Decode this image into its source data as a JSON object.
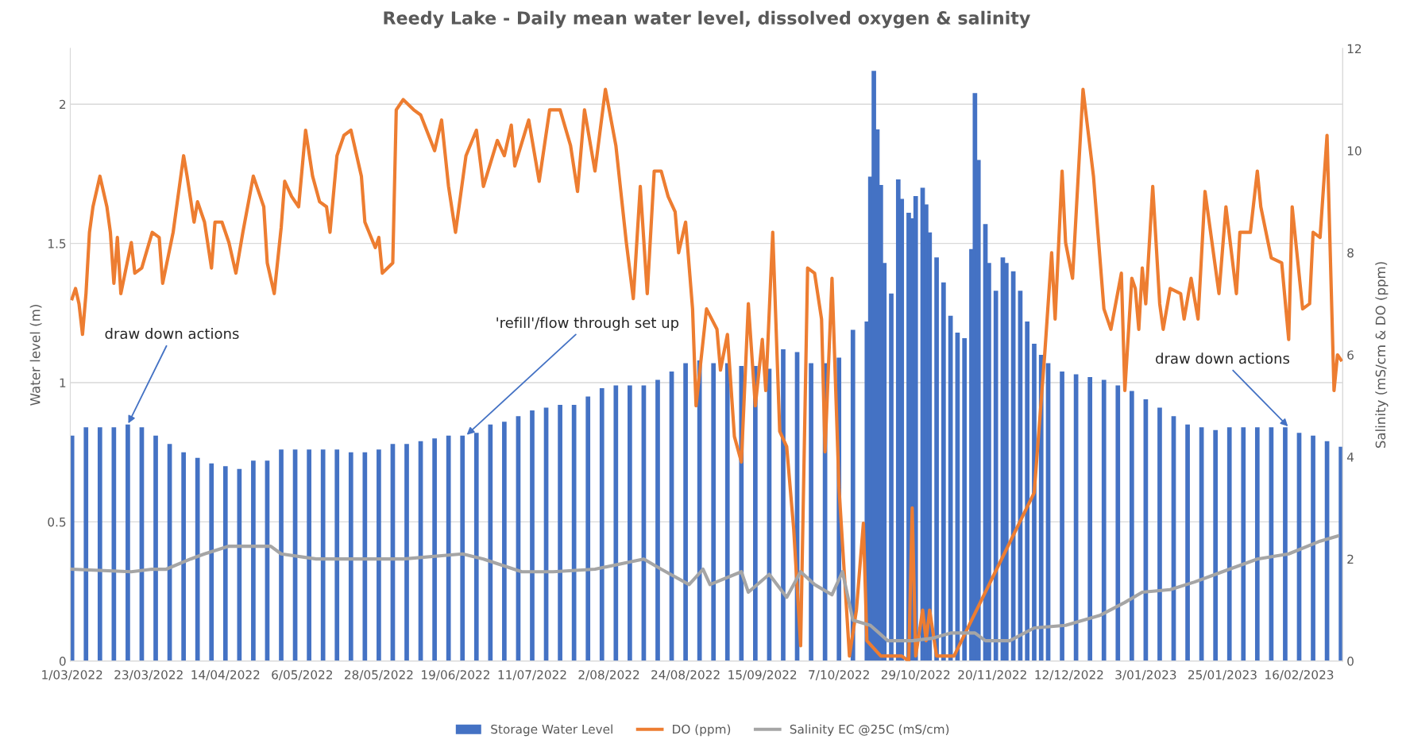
{
  "chart_data": {
    "type": "bar",
    "title": "Reedy Lake - Daily mean water level, dissolved oxygen & salinity",
    "ylabel": "Water level (m)",
    "y2label": "Salinity (mS/cm & DO (ppm)",
    "xlim": [
      "2022-02-28T12:00",
      "2023-02-28T12:00"
    ],
    "xticks": [
      {
        "value": "2022-03-01",
        "label": "1/03/2022"
      },
      {
        "value": "2022-03-23",
        "label": "23/03/2022"
      },
      {
        "value": "2022-04-14",
        "label": "14/04/2022"
      },
      {
        "value": "2022-05-06",
        "label": "6/05/2022"
      },
      {
        "value": "2022-05-28",
        "label": "28/05/2022"
      },
      {
        "value": "2022-06-19",
        "label": "19/06/2022"
      },
      {
        "value": "2022-07-11",
        "label": "11/07/2022"
      },
      {
        "value": "2022-08-02",
        "label": "2/08/2022"
      },
      {
        "value": "2022-08-24",
        "label": "24/08/2022"
      },
      {
        "value": "2022-09-15",
        "label": "15/09/2022"
      },
      {
        "value": "2022-10-07",
        "label": "7/10/2022"
      },
      {
        "value": "2022-10-29",
        "label": "29/10/2022"
      },
      {
        "value": "2022-11-20",
        "label": "20/11/2022"
      },
      {
        "value": "2022-12-12",
        "label": "12/12/2022"
      },
      {
        "value": "2023-01-03",
        "label": "3/01/2023"
      },
      {
        "value": "2023-01-25",
        "label": "25/01/2023"
      },
      {
        "value": "2023-02-16",
        "label": "16/02/2023"
      }
    ],
    "ylim": [
      0,
      2.2
    ],
    "yticks": [
      0,
      0.5,
      1,
      1.5,
      2
    ],
    "y2lim": [
      0,
      12
    ],
    "y2ticks": [
      0,
      2,
      4,
      6,
      8,
      10,
      12
    ],
    "grid": "y",
    "legend": "bottom",
    "annotations": [
      {
        "text": "draw down actions",
        "x": "2022-03-17",
        "y": 0.85
      },
      {
        "text": "'refill'/flow through set up",
        "x": "2022-06-22",
        "y": 0.81
      },
      {
        "text": "draw down actions",
        "x": "2023-02-13",
        "y": 0.84
      }
    ],
    "series": [
      {
        "name": "Storage Water Level",
        "color": "#4472c4",
        "x": [
          "2022-03-01",
          "2022-03-05",
          "2022-03-09",
          "2022-03-13",
          "2022-03-17",
          "2022-03-21",
          "2022-03-25",
          "2022-03-29",
          "2022-04-02",
          "2022-04-06",
          "2022-04-10",
          "2022-04-14",
          "2022-04-18",
          "2022-04-22",
          "2022-04-26",
          "2022-04-30",
          "2022-05-04",
          "2022-05-08",
          "2022-05-12",
          "2022-05-16",
          "2022-05-20",
          "2022-05-24",
          "2022-05-28",
          "2022-06-01",
          "2022-06-05",
          "2022-06-09",
          "2022-06-13",
          "2022-06-17",
          "2022-06-21",
          "2022-06-25",
          "2022-06-29",
          "2022-07-03",
          "2022-07-07",
          "2022-07-11",
          "2022-07-15",
          "2022-07-19",
          "2022-07-23",
          "2022-07-27",
          "2022-07-31",
          "2022-08-04",
          "2022-08-08",
          "2022-08-12",
          "2022-08-16",
          "2022-08-20",
          "2022-08-24",
          "2022-08-28",
          "2022-09-01",
          "2022-09-05",
          "2022-09-09",
          "2022-09-13",
          "2022-09-17",
          "2022-09-21",
          "2022-09-25",
          "2022-09-29",
          "2022-10-03",
          "2022-10-07",
          "2022-10-11",
          "2022-10-15",
          "2022-10-16",
          "2022-10-17",
          "2022-10-18",
          "2022-10-19",
          "2022-10-20",
          "2022-10-22",
          "2022-10-24",
          "2022-10-25",
          "2022-10-27",
          "2022-10-28",
          "2022-10-29",
          "2022-10-31",
          "2022-11-01",
          "2022-11-02",
          "2022-11-04",
          "2022-11-06",
          "2022-11-08",
          "2022-11-10",
          "2022-11-12",
          "2022-11-14",
          "2022-11-15",
          "2022-11-16",
          "2022-11-18",
          "2022-11-19",
          "2022-11-21",
          "2022-11-23",
          "2022-11-24",
          "2022-11-26",
          "2022-11-28",
          "2022-11-30",
          "2022-12-02",
          "2022-12-04",
          "2022-12-06",
          "2022-12-10",
          "2022-12-14",
          "2022-12-18",
          "2022-12-22",
          "2022-12-26",
          "2022-12-30",
          "2023-01-03",
          "2023-01-07",
          "2023-01-11",
          "2023-01-15",
          "2023-01-19",
          "2023-01-23",
          "2023-01-27",
          "2023-01-31",
          "2023-02-04",
          "2023-02-08",
          "2023-02-12",
          "2023-02-16",
          "2023-02-20",
          "2023-02-24",
          "2023-02-28"
        ],
        "values": [
          0.81,
          0.84,
          0.84,
          0.84,
          0.85,
          0.84,
          0.81,
          0.78,
          0.75,
          0.73,
          0.71,
          0.7,
          0.69,
          0.72,
          0.72,
          0.76,
          0.76,
          0.76,
          0.76,
          0.76,
          0.75,
          0.75,
          0.76,
          0.78,
          0.78,
          0.79,
          0.8,
          0.81,
          0.81,
          0.82,
          0.85,
          0.86,
          0.88,
          0.9,
          0.91,
          0.92,
          0.92,
          0.95,
          0.98,
          0.99,
          0.99,
          0.99,
          1.01,
          1.04,
          1.07,
          1.08,
          1.07,
          1.07,
          1.06,
          1.06,
          1.05,
          1.12,
          1.11,
          1.07,
          1.07,
          1.09,
          1.19,
          1.22,
          1.74,
          2.12,
          1.91,
          1.71,
          1.43,
          1.32,
          1.73,
          1.66,
          1.61,
          1.59,
          1.67,
          1.7,
          1.64,
          1.54,
          1.45,
          1.36,
          1.24,
          1.18,
          1.16,
          1.48,
          2.04,
          1.8,
          1.57,
          1.43,
          1.33,
          1.45,
          1.43,
          1.4,
          1.33,
          1.22,
          1.14,
          1.1,
          1.07,
          1.04,
          1.03,
          1.02,
          1.01,
          0.99,
          0.97,
          0.94,
          0.91,
          0.88,
          0.85,
          0.84,
          0.83,
          0.84,
          0.84,
          0.84,
          0.84,
          0.84,
          0.82,
          0.81,
          0.79,
          0.77
        ]
      },
      {
        "name": "DO (ppm)",
        "type": "line",
        "axis": "y2",
        "color": "#ed7d31",
        "x": [
          "2022-03-01",
          "2022-03-02",
          "2022-03-03",
          "2022-03-04",
          "2022-03-05",
          "2022-03-06",
          "2022-03-07",
          "2022-03-09",
          "2022-03-11",
          "2022-03-12",
          "2022-03-13",
          "2022-03-14",
          "2022-03-15",
          "2022-03-18",
          "2022-03-19",
          "2022-03-21",
          "2022-03-24",
          "2022-03-26",
          "2022-03-27",
          "2022-03-30",
          "2022-04-02",
          "2022-04-03",
          "2022-04-05",
          "2022-04-06",
          "2022-04-08",
          "2022-04-10",
          "2022-04-11",
          "2022-04-13",
          "2022-04-15",
          "2022-04-17",
          "2022-04-19",
          "2022-04-22",
          "2022-04-25",
          "2022-04-26",
          "2022-04-28",
          "2022-04-30",
          "2022-05-01",
          "2022-05-03",
          "2022-05-05",
          "2022-05-07",
          "2022-05-09",
          "2022-05-11",
          "2022-05-13",
          "2022-05-14",
          "2022-05-16",
          "2022-05-18",
          "2022-05-20",
          "2022-05-23",
          "2022-05-24",
          "2022-05-27",
          "2022-05-28",
          "2022-05-29",
          "2022-06-01",
          "2022-06-02",
          "2022-06-04",
          "2022-06-07",
          "2022-06-09",
          "2022-06-13",
          "2022-06-15",
          "2022-06-17",
          "2022-06-19",
          "2022-06-22",
          "2022-06-25",
          "2022-06-27",
          "2022-07-01",
          "2022-07-03",
          "2022-07-05",
          "2022-07-06",
          "2022-07-10",
          "2022-07-13",
          "2022-07-16",
          "2022-07-19",
          "2022-07-22",
          "2022-07-24",
          "2022-07-26",
          "2022-07-29",
          "2022-08-01",
          "2022-08-04",
          "2022-08-07",
          "2022-08-09",
          "2022-08-11",
          "2022-08-13",
          "2022-08-15",
          "2022-08-17",
          "2022-08-19",
          "2022-08-21",
          "2022-08-22",
          "2022-08-24",
          "2022-08-26",
          "2022-08-27",
          "2022-08-30",
          "2022-09-02",
          "2022-09-03",
          "2022-09-05",
          "2022-09-07",
          "2022-09-09",
          "2022-09-11",
          "2022-09-13",
          "2022-09-15",
          "2022-09-16",
          "2022-09-18",
          "2022-09-20",
          "2022-09-22",
          "2022-09-24",
          "2022-09-26",
          "2022-09-28",
          "2022-09-30",
          "2022-10-02",
          "2022-10-03",
          "2022-10-05",
          "2022-10-07",
          "2022-10-10",
          "2022-10-12",
          "2022-10-14",
          "2022-10-15",
          "2022-10-19",
          "2022-10-25",
          "2022-10-27",
          "2022-10-28",
          "2022-10-29",
          "2022-10-31",
          "2022-11-01",
          "2022-11-02",
          "2022-11-04",
          "2022-11-09",
          "2022-12-02",
          "2022-12-05",
          "2022-12-07",
          "2022-12-08",
          "2022-12-10",
          "2022-12-11",
          "2022-12-13",
          "2022-12-16",
          "2022-12-19",
          "2022-12-22",
          "2022-12-24",
          "2022-12-27",
          "2022-12-28",
          "2022-12-30",
          "2022-12-31",
          "2023-01-01",
          "2023-01-02",
          "2023-01-03",
          "2023-01-05",
          "2023-01-07",
          "2023-01-08",
          "2023-01-10",
          "2023-01-13",
          "2023-01-14",
          "2023-01-16",
          "2023-01-18",
          "2023-01-20",
          "2023-01-24",
          "2023-01-26",
          "2023-01-29",
          "2023-01-30",
          "2023-02-02",
          "2023-02-04",
          "2023-02-05",
          "2023-02-08",
          "2023-02-11",
          "2023-02-13",
          "2023-02-14",
          "2023-02-17",
          "2023-02-19",
          "2023-02-20",
          "2023-02-22",
          "2023-02-24",
          "2023-02-26",
          "2023-02-27",
          "2023-02-28"
        ],
        "values": [
          7.1,
          7.3,
          7.0,
          6.4,
          7.2,
          8.4,
          8.9,
          9.5,
          8.9,
          8.4,
          7.4,
          8.3,
          7.2,
          8.2,
          7.6,
          7.7,
          8.4,
          8.3,
          7.4,
          8.4,
          9.9,
          9.5,
          8.6,
          9.0,
          8.6,
          7.7,
          8.6,
          8.6,
          8.2,
          7.6,
          8.4,
          9.5,
          8.9,
          7.8,
          7.2,
          8.5,
          9.4,
          9.1,
          8.9,
          10.4,
          9.5,
          9.0,
          8.9,
          8.4,
          9.9,
          10.3,
          10.4,
          9.5,
          8.6,
          8.1,
          8.3,
          7.6,
          7.8,
          10.8,
          11.0,
          10.8,
          10.7,
          10.0,
          10.6,
          9.3,
          8.4,
          9.9,
          10.4,
          9.3,
          10.2,
          9.9,
          10.5,
          9.7,
          10.6,
          9.4,
          10.8,
          10.8,
          10.1,
          9.2,
          10.8,
          9.6,
          11.2,
          10.1,
          8.2,
          7.1,
          9.3,
          7.2,
          9.6,
          9.6,
          9.1,
          8.8,
          8.0,
          8.6,
          6.9,
          5.0,
          6.9,
          6.5,
          5.7,
          6.4,
          4.4,
          3.9,
          7.0,
          5.0,
          6.3,
          5.3,
          8.4,
          4.5,
          4.2,
          2.6,
          0.3,
          7.7,
          7.6,
          6.7,
          4.1,
          7.5,
          3.4,
          0.1,
          1.0,
          2.7,
          0.4,
          0.1,
          0.1,
          0.0,
          3.0,
          0.1,
          1.0,
          0.4,
          1.0,
          0.1,
          0.1,
          3.3,
          6.0,
          8.0,
          6.7,
          9.6,
          8.2,
          7.5,
          11.2,
          9.5,
          6.9,
          6.5,
          7.6,
          5.3,
          7.5,
          7.3,
          6.5,
          7.7,
          7.0,
          9.3,
          7.0,
          6.5,
          7.3,
          7.2,
          6.7,
          7.5,
          6.7,
          9.2,
          7.2,
          8.9,
          7.2,
          8.4,
          8.4,
          9.6,
          8.9,
          7.9,
          7.8,
          6.3,
          8.9,
          6.9,
          7.0,
          8.4,
          8.3,
          10.3,
          5.3,
          6.0,
          5.9
        ]
      },
      {
        "name": "Salinity EC @25C (mS/cm)",
        "type": "line",
        "axis": "y2",
        "color": "#a5a5a5",
        "x": [
          "2022-03-01",
          "2022-03-18",
          "2022-03-24",
          "2022-03-28",
          "2022-04-04",
          "2022-04-08",
          "2022-04-15",
          "2022-04-27",
          "2022-04-30",
          "2022-05-10",
          "2022-05-23",
          "2022-06-04",
          "2022-06-21",
          "2022-06-27",
          "2022-07-08",
          "2022-07-17",
          "2022-07-29",
          "2022-08-12",
          "2022-08-17",
          "2022-08-25",
          "2022-08-29",
          "2022-08-31",
          "2022-09-09",
          "2022-09-11",
          "2022-09-17",
          "2022-09-22",
          "2022-09-26",
          "2022-09-30",
          "2022-10-05",
          "2022-10-08",
          "2022-10-11",
          "2022-10-16",
          "2022-10-21",
          "2022-10-28",
          "2022-11-03",
          "2022-11-08",
          "2022-11-15",
          "2022-11-18",
          "2022-11-25",
          "2022-12-02",
          "2022-12-11",
          "2022-12-21",
          "2022-12-28",
          "2023-01-02",
          "2023-01-10",
          "2023-01-17",
          "2023-01-27",
          "2023-02-04",
          "2023-02-13",
          "2023-02-22",
          "2023-02-27"
        ],
        "values": [
          1.8,
          1.75,
          1.8,
          1.8,
          2.0,
          2.1,
          2.25,
          2.25,
          2.1,
          2.0,
          2.0,
          2.0,
          2.1,
          2.0,
          1.75,
          1.75,
          1.8,
          2.0,
          1.8,
          1.5,
          1.8,
          1.5,
          1.75,
          1.35,
          1.7,
          1.25,
          1.75,
          1.5,
          1.3,
          1.75,
          0.8,
          0.7,
          0.4,
          0.4,
          0.45,
          0.55,
          0.55,
          0.4,
          0.4,
          0.65,
          0.7,
          0.9,
          1.15,
          1.35,
          1.4,
          1.55,
          1.8,
          2.0,
          2.1,
          2.35,
          2.45
        ]
      }
    ]
  }
}
